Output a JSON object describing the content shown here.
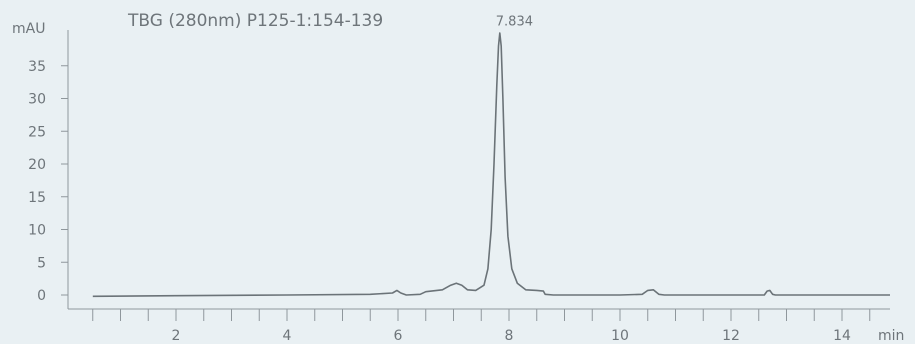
{
  "chart_data": {
    "type": "line",
    "title": "TBG (280nm) P125-1:154-139",
    "xlabel": "min",
    "ylabel": "mAU",
    "xlim": [
      0.5,
      15.0
    ],
    "ylim": [
      -2,
      41
    ],
    "x_ticks": [
      2,
      4,
      6,
      8,
      10,
      12,
      14
    ],
    "y_ticks": [
      0,
      5,
      10,
      15,
      20,
      25,
      30,
      35
    ],
    "x_minor_step": 0.5,
    "grid": false,
    "annotations": [
      {
        "text": "7.834",
        "x": 7.834,
        "y": 40.5
      }
    ],
    "series": [
      {
        "x": [
          0.5,
          2.0,
          4.0,
          5.5,
          5.9,
          5.98,
          6.05,
          6.15,
          6.4,
          6.5,
          6.6,
          6.8,
          6.95,
          7.05,
          7.15,
          7.25,
          7.4,
          7.55,
          7.62,
          7.68,
          7.73,
          7.78,
          7.81,
          7.834,
          7.86,
          7.89,
          7.93,
          7.98,
          8.05,
          8.15,
          8.3,
          8.5,
          8.62,
          8.65,
          8.8,
          10.0,
          10.4,
          10.5,
          10.6,
          10.7,
          10.8,
          12.6,
          12.65,
          12.7,
          12.75,
          12.8,
          15.0
        ],
        "y": [
          -0.2,
          -0.1,
          0.0,
          0.1,
          0.3,
          0.7,
          0.3,
          0.0,
          0.1,
          0.5,
          0.6,
          0.8,
          1.5,
          1.8,
          1.5,
          0.8,
          0.7,
          1.5,
          4.0,
          10.0,
          20.0,
          32.0,
          38.0,
          40.0,
          38.0,
          30.0,
          18.0,
          9.0,
          4.0,
          1.8,
          0.8,
          0.7,
          0.6,
          0.1,
          0.0,
          0.0,
          0.1,
          0.7,
          0.8,
          0.1,
          0.0,
          0.0,
          0.6,
          0.7,
          0.1,
          0.0,
          0.0
        ]
      }
    ]
  }
}
